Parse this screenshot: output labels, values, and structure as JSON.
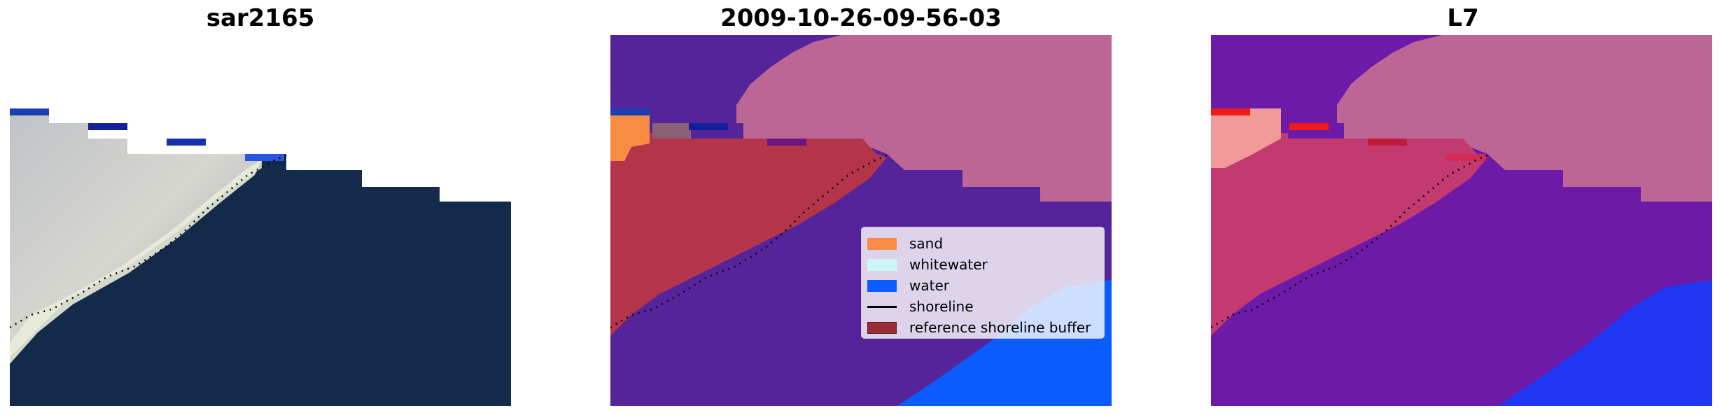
{
  "panels": [
    {
      "title": "sar2165"
    },
    {
      "title": "2009-10-26-09-56-03"
    },
    {
      "title": "L7"
    }
  ],
  "legend": {
    "items": [
      {
        "label": "sand",
        "color": "#f98c45"
      },
      {
        "label": "whitewater",
        "color": "#cdf7f7"
      },
      {
        "label": "water",
        "color": "#0a5cff"
      },
      {
        "label": "shoreline",
        "color": "#000000"
      },
      {
        "label": "reference shoreline buffer",
        "color": "#9b2d36"
      }
    ]
  },
  "colors": {
    "rgb_water": "#142a4a",
    "rgb_sand": "#c9ccd0",
    "class_land_overlay": "#bd6696",
    "class_buffer": "#b4344a",
    "class_water_purple": "#55249a",
    "class_water_blue": "#0a5cff",
    "l7_buffer": "#c23a6f",
    "l7_water": "#6e1aa9",
    "l7_blue": "#1f36f2"
  }
}
